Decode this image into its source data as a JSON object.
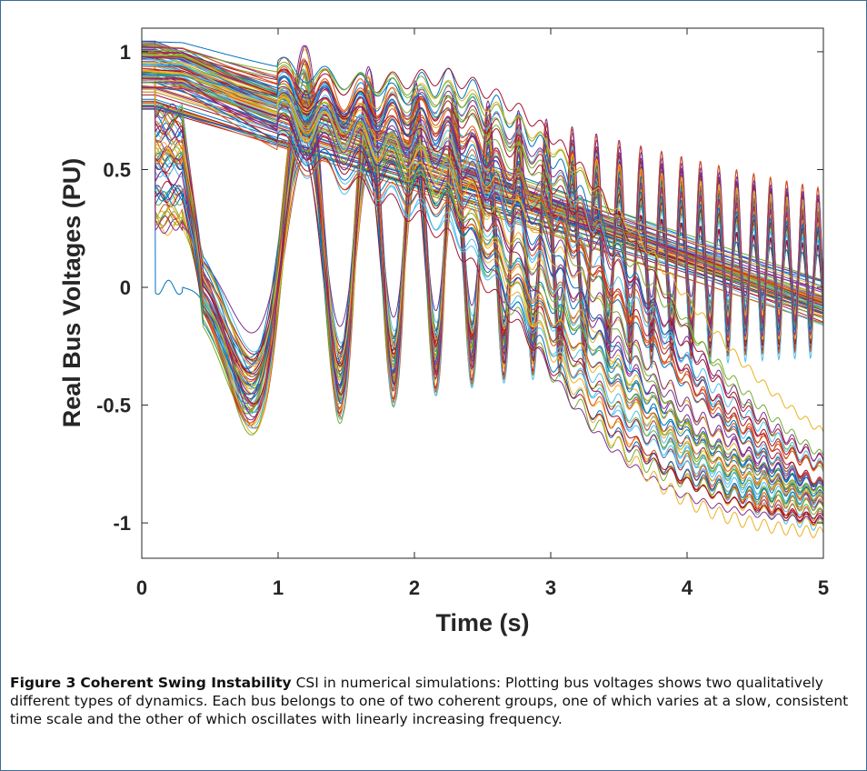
{
  "chart_data": {
    "type": "line",
    "xlabel": "Time (s)",
    "ylabel": "Real Bus Voltages (PU)",
    "xlim": [
      0,
      5
    ],
    "ylim": [
      -1.15,
      1.1
    ],
    "x_ticks": [
      "0",
      "1",
      "2",
      "3",
      "4",
      "5"
    ],
    "y_ticks": [
      "-1",
      "-0.5",
      "0",
      "0.5",
      "1"
    ],
    "x_tick_values": [
      0,
      1,
      2,
      3,
      4,
      5
    ],
    "y_tick_values": [
      -1,
      -0.5,
      0,
      0.5,
      1
    ],
    "grid": false,
    "legend": "none",
    "fault_interval": [
      0.1,
      0.3
    ],
    "groups": [
      {
        "name": "",
        "behavior": "oscillating",
        "prefault_range": [
          0.75,
          1.05
        ],
        "fault_range": [
          0.0,
          0.75
        ],
        "first_minimum_time": 0.8,
        "frequency_start_hz": 0.9,
        "frequency_end_hz": 10.0,
        "count": 60
      },
      {
        "name": "",
        "behavior": "slow",
        "prefault_range": [
          0.85,
          1.05
        ],
        "final_range": [
          -1.08,
          -0.9
        ],
        "count": 50
      }
    ],
    "colors": [
      "#0072BD",
      "#D95319",
      "#EDB120",
      "#7E2F8E",
      "#77AC30",
      "#4DBEEE",
      "#A2142F"
    ]
  },
  "caption": {
    "label": "Figure 3",
    "title": "Coherent Swing Instability",
    "text": "CSI in numerical simulations: Plotting bus voltages shows two qualitatively different types of dynamics. Each bus belongs to one of two coherent groups, one of which varies at a slow, consistent time scale and the other of which oscillates with linearly increasing frequency."
  }
}
